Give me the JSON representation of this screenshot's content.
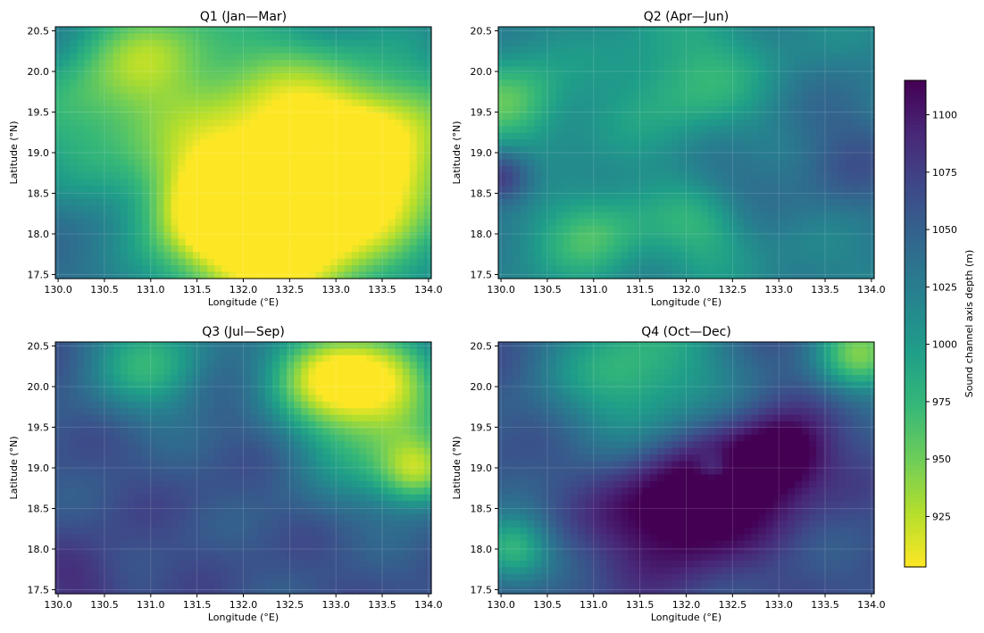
{
  "chart_data": [
    {
      "type": "heatmap",
      "title": "Q1 (Jan—Mar)",
      "xlabel": "Longitude (°E)",
      "ylabel": "Latitude (°N)",
      "xlim": [
        129.97,
        134.03
      ],
      "ylim": [
        17.45,
        20.55
      ],
      "xticks": [
        "130.0",
        "130.5",
        "131.0",
        "131.5",
        "132.0",
        "132.5",
        "133.0",
        "133.5",
        "134.0"
      ],
      "yticks": [
        "17.5",
        "18.0",
        "18.5",
        "19.0",
        "19.5",
        "20.0",
        "20.5"
      ],
      "grid": true,
      "pattern": {
        "base": 1035,
        "features": [
          {
            "x": 132.5,
            "y": 19.1,
            "r": 1.1,
            "amp": -120
          },
          {
            "x": 133.4,
            "y": 18.9,
            "r": 0.7,
            "amp": -90
          },
          {
            "x": 132.3,
            "y": 17.9,
            "r": 0.7,
            "amp": -110
          },
          {
            "x": 131.6,
            "y": 18.3,
            "r": 0.5,
            "amp": -70
          },
          {
            "x": 130.3,
            "y": 19.5,
            "r": 0.6,
            "amp": -55
          },
          {
            "x": 131.0,
            "y": 20.3,
            "r": 0.5,
            "amp": -60
          },
          {
            "x": 133.2,
            "y": 20.3,
            "r": 0.6,
            "amp": 20
          },
          {
            "x": 130.6,
            "y": 18.0,
            "r": 0.5,
            "amp": 15
          }
        ]
      }
    },
    {
      "type": "heatmap",
      "title": "Q2 (Apr—Jun)",
      "xlabel": "Longitude (°E)",
      "ylabel": "Latitude (°N)",
      "xlim": [
        129.97,
        134.03
      ],
      "ylim": [
        17.45,
        20.55
      ],
      "xticks": [
        "130.0",
        "130.5",
        "131.0",
        "131.5",
        "132.0",
        "132.5",
        "133.0",
        "133.5",
        "134.0"
      ],
      "yticks": [
        "17.5",
        "18.0",
        "18.5",
        "19.0",
        "19.5",
        "20.0",
        "20.5"
      ],
      "grid": true,
      "pattern": {
        "base": 1020,
        "features": [
          {
            "x": 130.1,
            "y": 19.6,
            "r": 0.4,
            "amp": -65
          },
          {
            "x": 131.0,
            "y": 18.0,
            "r": 0.4,
            "amp": -55
          },
          {
            "x": 132.0,
            "y": 19.9,
            "r": 0.6,
            "amp": -45
          },
          {
            "x": 132.2,
            "y": 18.1,
            "r": 0.4,
            "amp": -45
          },
          {
            "x": 130.0,
            "y": 18.7,
            "r": 0.25,
            "amp": 70
          },
          {
            "x": 133.8,
            "y": 19.0,
            "r": 0.6,
            "amp": 35
          },
          {
            "x": 132.5,
            "y": 18.6,
            "r": 0.4,
            "amp": 25
          }
        ]
      }
    },
    {
      "type": "heatmap",
      "title": "Q3 (Jul—Sep)",
      "xlabel": "Longitude (°E)",
      "ylabel": "Latitude (°N)",
      "xlim": [
        129.97,
        134.03
      ],
      "ylim": [
        17.45,
        20.55
      ],
      "xticks": [
        "130.0",
        "130.5",
        "131.0",
        "131.5",
        "132.0",
        "132.5",
        "133.0",
        "133.5",
        "134.0"
      ],
      "yticks": [
        "17.5",
        "18.0",
        "18.5",
        "19.0",
        "19.5",
        "20.0",
        "20.5"
      ],
      "grid": true,
      "pattern": {
        "base": 1062,
        "features": [
          {
            "x": 132.9,
            "y": 20.2,
            "r": 0.45,
            "amp": -130
          },
          {
            "x": 133.6,
            "y": 20.0,
            "r": 0.45,
            "amp": -100
          },
          {
            "x": 133.9,
            "y": 18.95,
            "r": 0.3,
            "amp": -110
          },
          {
            "x": 131.0,
            "y": 20.3,
            "r": 0.5,
            "amp": -80
          },
          {
            "x": 133.3,
            "y": 19.3,
            "r": 0.6,
            "amp": -60
          },
          {
            "x": 130.3,
            "y": 17.6,
            "r": 0.35,
            "amp": 25
          }
        ]
      }
    },
    {
      "type": "heatmap",
      "title": "Q4 (Oct—Dec)",
      "xlabel": "Longitude (°E)",
      "ylabel": "Latitude (°N)",
      "xlim": [
        129.97,
        134.03
      ],
      "ylim": [
        17.45,
        20.55
      ],
      "xticks": [
        "130.0",
        "130.5",
        "131.0",
        "131.5",
        "132.0",
        "132.5",
        "133.0",
        "133.5",
        "134.0"
      ],
      "yticks": [
        "17.5",
        "18.0",
        "18.5",
        "19.0",
        "19.5",
        "20.0",
        "20.5"
      ],
      "grid": true,
      "pattern": {
        "base": 1062,
        "features": [
          {
            "x": 131.9,
            "y": 18.5,
            "r": 0.55,
            "amp": 80
          },
          {
            "x": 132.8,
            "y": 19.0,
            "r": 0.45,
            "amp": 60
          },
          {
            "x": 133.1,
            "y": 19.2,
            "r": 0.3,
            "amp": 40
          },
          {
            "x": 132.3,
            "y": 19.0,
            "r": 0.15,
            "amp": -40
          },
          {
            "x": 131.5,
            "y": 20.2,
            "r": 0.7,
            "amp": -90
          },
          {
            "x": 133.9,
            "y": 20.4,
            "r": 0.35,
            "amp": -110
          },
          {
            "x": 130.1,
            "y": 18.0,
            "r": 0.3,
            "amp": -90
          }
        ]
      }
    }
  ],
  "colorbar": {
    "label": "Sound channel axis depth (m)",
    "colormap": "viridis_r",
    "vmin": 903,
    "vmax": 1115,
    "ticks": [
      925,
      950,
      975,
      1000,
      1025,
      1050,
      1075,
      1100
    ],
    "tick_labels": [
      "925",
      "950",
      "975",
      "1000",
      "1025",
      "1050",
      "1075",
      "1100"
    ]
  }
}
